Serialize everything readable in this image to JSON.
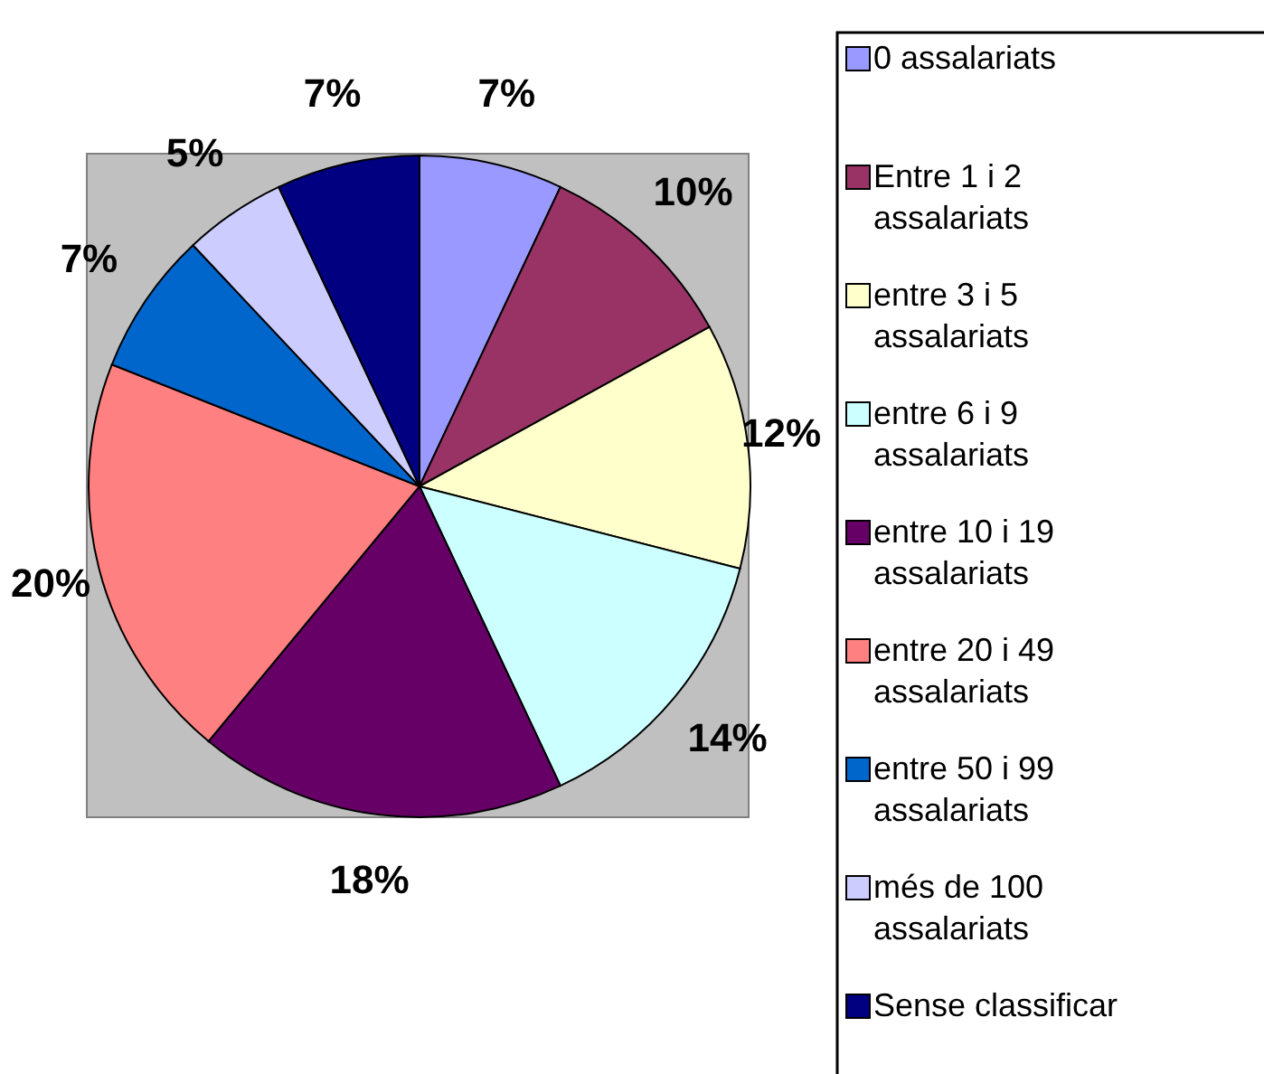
{
  "chart_data": {
    "type": "pie",
    "categories": [
      "0 assalariats",
      "Entre 1 i 2 assalariats",
      "entre 3 i 5 assalariats",
      "entre 6 i 9 assalariats",
      "entre 10 i 19 assalariats",
      "entre 20 i 49 assalariats",
      "entre 50 i 99 assalariats",
      "més de 100 assalariats",
      "Sense classificar"
    ],
    "values": [
      7,
      10,
      12,
      14,
      18,
      20,
      7,
      5,
      7
    ],
    "colors": [
      "#9999ff",
      "#993366",
      "#ffffcc",
      "#ccffff",
      "#660066",
      "#ff8080",
      "#0066cc",
      "#ccccff",
      "#000080"
    ],
    "value_labels": [
      "7%",
      "10%",
      "12%",
      "14%",
      "18%",
      "20%",
      "7%",
      "5%",
      "7%"
    ],
    "legend": "right"
  }
}
